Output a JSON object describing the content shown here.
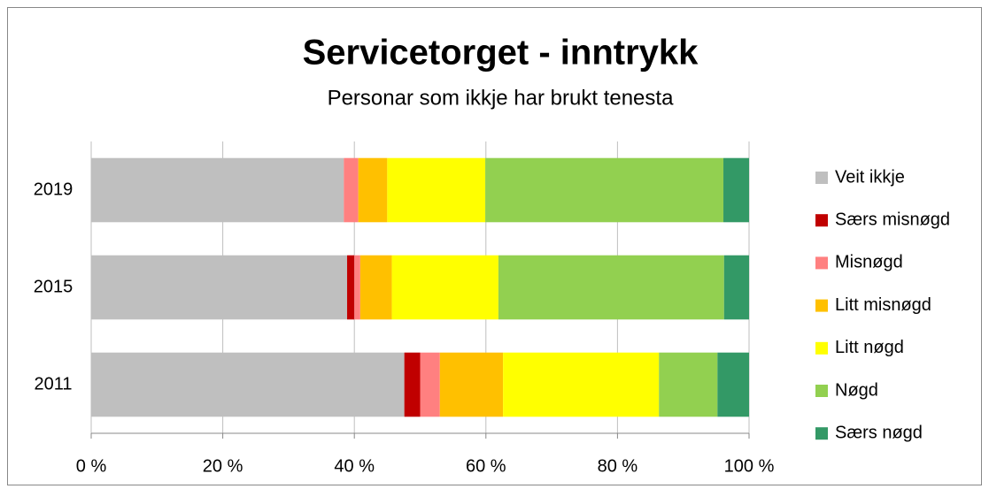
{
  "chart_data": {
    "type": "stacked-bar-horizontal",
    "title": "Servicetorget -  inntrykk",
    "subtitle": "Personar som ikkje har brukt tenesta",
    "categories": [
      "2019",
      "2015",
      "2011"
    ],
    "series": [
      {
        "name": "Veit ikkje",
        "color": "#bfbfbf",
        "values": [
          38.4,
          38.9,
          47.6
        ]
      },
      {
        "name": "Særs misnøgd",
        "color": "#c00000",
        "values": [
          0,
          1.1,
          2.4
        ]
      },
      {
        "name": "Misnøgd",
        "color": "#ff8080",
        "values": [
          2.2,
          0.9,
          3.0
        ]
      },
      {
        "name": "Litt misnøgd",
        "color": "#ffc000",
        "values": [
          4.4,
          4.8,
          9.6
        ]
      },
      {
        "name": "Litt nøgd",
        "color": "#ffff00",
        "values": [
          14.9,
          16.2,
          23.7
        ]
      },
      {
        "name": "Nøgd",
        "color": "#92d050",
        "values": [
          36.2,
          34.3,
          8.9
        ]
      },
      {
        "name": "Særs nøgd",
        "color": "#339966",
        "values": [
          3.9,
          3.8,
          4.8
        ]
      }
    ],
    "xlim": [
      0,
      100
    ],
    "xticks": [
      {
        "value": 0,
        "label": "0 %"
      },
      {
        "value": 20,
        "label": "20 %"
      },
      {
        "value": 40,
        "label": "40 %"
      },
      {
        "value": 60,
        "label": "60 %"
      },
      {
        "value": 80,
        "label": "80 %"
      },
      {
        "value": 100,
        "label": "100 %"
      }
    ],
    "grid": true,
    "legend": "right"
  }
}
